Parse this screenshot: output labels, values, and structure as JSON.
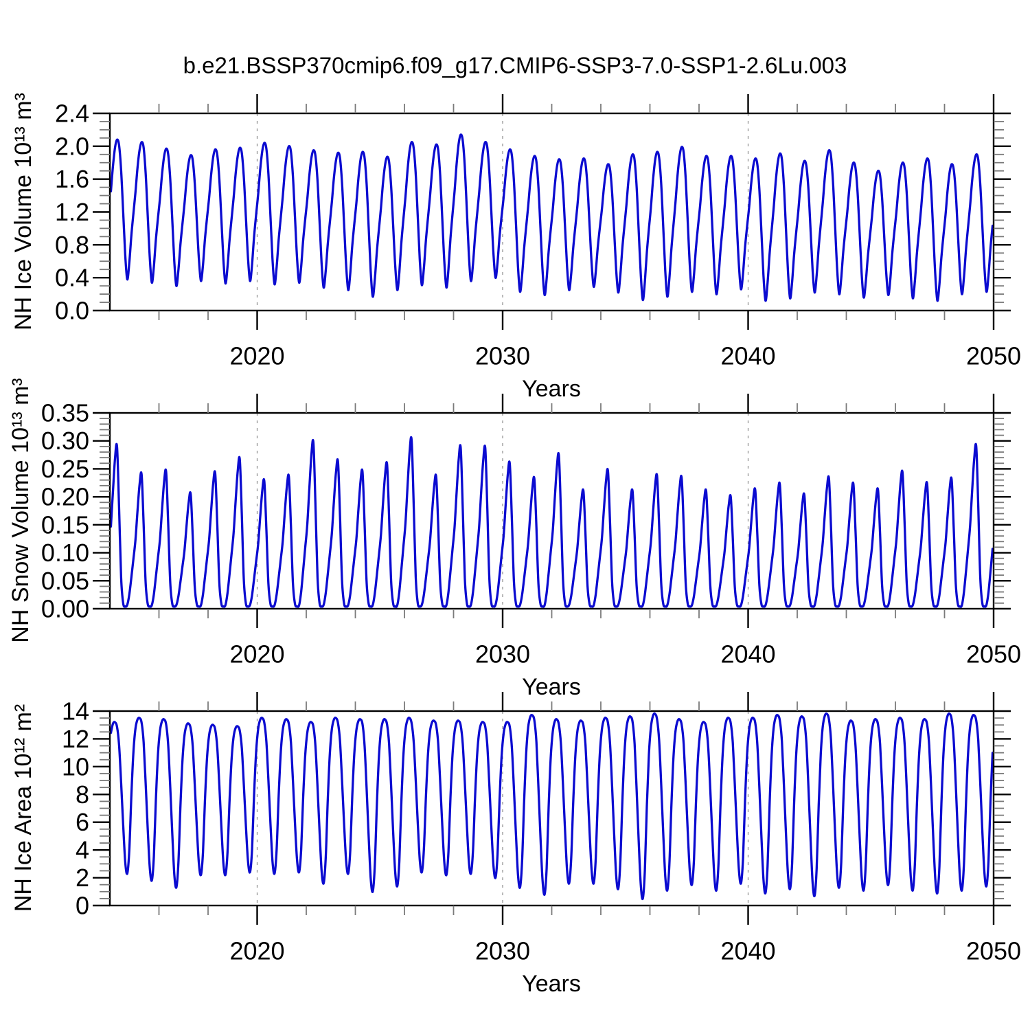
{
  "title": "b.e21.BSSP370cmip6.f09_g17.CMIP6-SSP3-7.0-SSP1-2.6Lu.003",
  "colors": {
    "line": "#0b0bd0",
    "axis": "#000000",
    "minor_tick": "#7a7a7a",
    "grid": "#8c8c8c",
    "background": "#ffffff"
  },
  "x_axis": {
    "label": "Years",
    "range": [
      2014,
      2050
    ],
    "ticks": [
      2020,
      2030,
      2040,
      2050
    ],
    "minor_step": 2,
    "grid_years": [
      2020,
      2030,
      2040
    ]
  },
  "chart_data": [
    {
      "type": "line",
      "name": "nh-ice-volume",
      "ylabel": "NH Ice Volume 10¹³ m³",
      "xlabel": "Years",
      "ylim": [
        0.0,
        2.4
      ],
      "yticks": [
        0.0,
        0.4,
        0.8,
        1.2,
        1.6,
        2.0,
        2.4
      ],
      "ytick_decimals": 1,
      "y_minor_step": 0.1,
      "grid": "vertical-dashed",
      "legend": "none",
      "annual_cycle": {
        "comment": "monthly seasonal cycle; spring_max = April maximum, autumn_min = September minimum of each year",
        "years": [
          2014,
          2015,
          2016,
          2017,
          2018,
          2019,
          2020,
          2021,
          2022,
          2023,
          2024,
          2025,
          2026,
          2027,
          2028,
          2029,
          2030,
          2031,
          2032,
          2033,
          2034,
          2035,
          2036,
          2037,
          2038,
          2039,
          2040,
          2041,
          2042,
          2043,
          2044,
          2045,
          2046,
          2047,
          2048,
          2049
        ],
        "spring_max": [
          2.08,
          2.05,
          1.97,
          1.89,
          1.96,
          1.98,
          2.04,
          2.0,
          1.95,
          1.92,
          1.93,
          1.87,
          2.05,
          2.02,
          2.14,
          2.05,
          1.96,
          1.88,
          1.84,
          1.85,
          1.78,
          1.9,
          1.93,
          1.99,
          1.88,
          1.88,
          1.85,
          1.91,
          1.82,
          1.95,
          1.8,
          1.7,
          1.8,
          1.85,
          1.78,
          1.9
        ],
        "autumn_min": [
          0.38,
          0.34,
          0.3,
          0.36,
          0.33,
          0.36,
          0.32,
          0.34,
          0.28,
          0.25,
          0.17,
          0.25,
          0.31,
          0.28,
          0.36,
          0.4,
          0.23,
          0.19,
          0.25,
          0.29,
          0.22,
          0.13,
          0.17,
          0.23,
          0.2,
          0.26,
          0.12,
          0.15,
          0.22,
          0.2,
          0.16,
          0.19,
          0.15,
          0.12,
          0.2,
          0.23
        ],
        "rise_shape": [
          0.12,
          0.32,
          0.48,
          0.63,
          0.81,
          0.94,
          1.0
        ],
        "fall_shape": [
          0.96,
          0.78,
          0.48,
          0.18,
          0.0
        ]
      }
    },
    {
      "type": "line",
      "name": "nh-snow-volume",
      "ylabel": "NH Snow Volume 10¹³ m³",
      "xlabel": "Years",
      "ylim": [
        0.0,
        0.35
      ],
      "yticks": [
        0.0,
        0.05,
        0.1,
        0.15,
        0.2,
        0.25,
        0.3,
        0.35
      ],
      "ytick_decimals": 2,
      "y_minor_step": 0.01,
      "grid": "vertical-dashed",
      "legend": "none",
      "annual_cycle": {
        "comment": "monthly seasonal cycle; spring_max = late-winter maximum, autumn_min = flat near-zero summer minimum",
        "years": [
          2014,
          2015,
          2016,
          2017,
          2018,
          2019,
          2020,
          2021,
          2022,
          2023,
          2024,
          2025,
          2026,
          2027,
          2028,
          2029,
          2030,
          2031,
          2032,
          2033,
          2034,
          2035,
          2036,
          2037,
          2038,
          2039,
          2040,
          2041,
          2042,
          2043,
          2044,
          2045,
          2046,
          2047,
          2048,
          2049
        ],
        "spring_max": [
          0.29,
          0.24,
          0.245,
          0.205,
          0.242,
          0.267,
          0.228,
          0.236,
          0.297,
          0.263,
          0.245,
          0.258,
          0.302,
          0.236,
          0.288,
          0.287,
          0.259,
          0.232,
          0.274,
          0.21,
          0.246,
          0.21,
          0.237,
          0.234,
          0.21,
          0.2,
          0.212,
          0.222,
          0.203,
          0.233,
          0.222,
          0.212,
          0.243,
          0.223,
          0.231,
          0.29
        ],
        "autumn_min": [
          0.004,
          0.004,
          0.004,
          0.004,
          0.004,
          0.004,
          0.004,
          0.004,
          0.004,
          0.004,
          0.004,
          0.004,
          0.004,
          0.004,
          0.004,
          0.004,
          0.004,
          0.004,
          0.004,
          0.004,
          0.004,
          0.004,
          0.004,
          0.004,
          0.004,
          0.004,
          0.004,
          0.004,
          0.004,
          0.004,
          0.004,
          0.004,
          0.004,
          0.004,
          0.004,
          0.004
        ],
        "rise_shape": [
          0.09,
          0.22,
          0.36,
          0.5,
          0.72,
          0.92,
          1.0
        ],
        "fall_shape": [
          0.62,
          0.18,
          0.02,
          0.0,
          0.01
        ]
      }
    },
    {
      "type": "line",
      "name": "nh-ice-area",
      "ylabel": "NH Ice Area 10¹² m²",
      "xlabel": "Years",
      "ylim": [
        0,
        14
      ],
      "yticks": [
        0,
        2,
        4,
        6,
        8,
        10,
        12,
        14
      ],
      "ytick_decimals": 0,
      "y_minor_step": 0.5,
      "grid": "vertical-dashed",
      "legend": "none",
      "annual_cycle": {
        "comment": "monthly seasonal cycle; spring_max = winter/spring maximum plateau, autumn_min = September minimum",
        "years": [
          2014,
          2015,
          2016,
          2017,
          2018,
          2019,
          2020,
          2021,
          2022,
          2023,
          2024,
          2025,
          2026,
          2027,
          2028,
          2029,
          2030,
          2031,
          2032,
          2033,
          2034,
          2035,
          2036,
          2037,
          2038,
          2039,
          2040,
          2041,
          2042,
          2043,
          2044,
          2045,
          2046,
          2047,
          2048,
          2049
        ],
        "spring_max": [
          13.2,
          13.5,
          13.4,
          13.1,
          13.0,
          12.9,
          13.5,
          13.4,
          13.2,
          13.5,
          13.4,
          13.4,
          13.5,
          13.3,
          13.3,
          13.2,
          13.2,
          13.7,
          13.4,
          13.3,
          13.5,
          13.6,
          13.8,
          13.4,
          13.2,
          13.5,
          13.5,
          13.7,
          13.6,
          13.8,
          13.3,
          13.4,
          13.5,
          13.4,
          13.8,
          13.7
        ],
        "autumn_min": [
          2.3,
          1.8,
          1.3,
          2.2,
          2.2,
          2.4,
          2.3,
          2.4,
          1.6,
          2.3,
          1.0,
          1.4,
          2.4,
          2.2,
          2.3,
          2.0,
          1.3,
          0.8,
          1.6,
          1.6,
          1.2,
          0.5,
          1.1,
          1.5,
          1.1,
          1.6,
          0.9,
          1.2,
          0.7,
          1.3,
          1.1,
          1.5,
          1.1,
          0.9,
          1.1,
          1.4
        ],
        "rise_shape": [
          0.15,
          0.5,
          0.78,
          0.93,
          0.99,
          1.0,
          0.97
        ],
        "fall_shape": [
          0.85,
          0.6,
          0.32,
          0.08,
          0.0
        ]
      }
    }
  ]
}
